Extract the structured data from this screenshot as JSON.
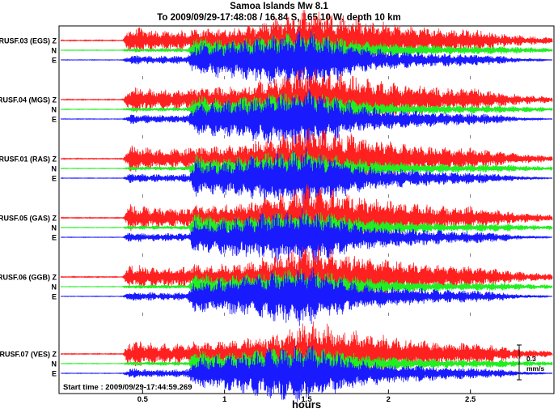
{
  "title": "Samoa Islands Mw 8.1",
  "subtitle": "To 2009/09/29-17:48:08 / 16.84 S, 165.10 W, depth 10 km",
  "start_time": "Start time : 2009/09/29-17:44:59.269",
  "scale_bar": {
    "value": "0.3",
    "unit": "mm/s"
  },
  "colors": {
    "Z": "#ff2020",
    "N": "#22ee22",
    "E": "#1a1aff"
  },
  "chart_data": {
    "type": "line",
    "title": "Samoa Islands Mw 8.1",
    "subtitle": "To 2009/09/29-17:48:08 / 16.84 S, 165.10 W, depth 10 km",
    "xlabel": "hours",
    "ylabel": "",
    "xlim": [
      0.0,
      3.0
    ],
    "xticks": [
      0.5,
      1,
      1.5,
      2,
      2.5
    ],
    "xtick_labels": [
      "0.5",
      "1",
      "1.5",
      "2",
      "2.5"
    ],
    "components": [
      "Z",
      "N",
      "E"
    ],
    "stations": [
      {
        "name": "RUSF.03 (EGS)",
        "label_z": "RUSF.03 (EGS) Z",
        "label_n": "N",
        "label_e": "E"
      },
      {
        "name": "RUSF.04 (MGS)",
        "label_z": "RUSF.04 (MGS) Z",
        "label_n": "N",
        "label_e": "E"
      },
      {
        "name": "RUSF.01 (RAS)",
        "label_z": "RUSF.01 (RAS) Z",
        "label_n": "N",
        "label_e": "E"
      },
      {
        "name": "RUSF.05 (GAS)",
        "label_z": "RUSF.05 (GAS) Z",
        "label_n": "N",
        "label_e": "E"
      },
      {
        "name": "RUSF.06 (GGB)",
        "label_z": "RUSF.06 (GGB) Z",
        "label_n": "N",
        "label_e": "E"
      },
      {
        "name": "RUSF.07 (VES)",
        "label_z": "RUSF.07 (VES) Z",
        "label_n": "N",
        "label_e": "E"
      }
    ],
    "envelope": {
      "x": [
        0.0,
        0.38,
        0.42,
        0.55,
        0.6,
        0.78,
        0.82,
        0.9,
        1.0,
        1.1,
        1.2,
        1.3,
        1.4,
        1.5,
        1.6,
        1.7,
        1.8,
        1.9,
        2.0,
        2.1,
        2.2,
        2.3,
        2.4,
        2.5,
        2.6,
        2.7,
        2.8,
        3.0
      ],
      "Z": [
        0.005,
        0.005,
        0.14,
        0.11,
        0.1,
        0.1,
        0.13,
        0.12,
        0.13,
        0.14,
        0.18,
        0.22,
        0.27,
        0.34,
        0.3,
        0.26,
        0.24,
        0.2,
        0.18,
        0.15,
        0.14,
        0.12,
        0.11,
        0.12,
        0.09,
        0.07,
        0.05,
        0.03
      ],
      "N": [
        0.003,
        0.003,
        0.02,
        0.02,
        0.02,
        0.02,
        0.16,
        0.12,
        0.1,
        0.12,
        0.14,
        0.16,
        0.17,
        0.18,
        0.16,
        0.13,
        0.1,
        0.08,
        0.07,
        0.06,
        0.05,
        0.05,
        0.04,
        0.04,
        0.04,
        0.04,
        0.03,
        0.02
      ],
      "E": [
        0.003,
        0.003,
        0.05,
        0.04,
        0.04,
        0.04,
        0.18,
        0.16,
        0.18,
        0.2,
        0.22,
        0.25,
        0.26,
        0.3,
        0.24,
        0.2,
        0.14,
        0.12,
        0.1,
        0.09,
        0.08,
        0.07,
        0.06,
        0.06,
        0.05,
        0.04,
        0.02,
        0.003
      ]
    }
  }
}
